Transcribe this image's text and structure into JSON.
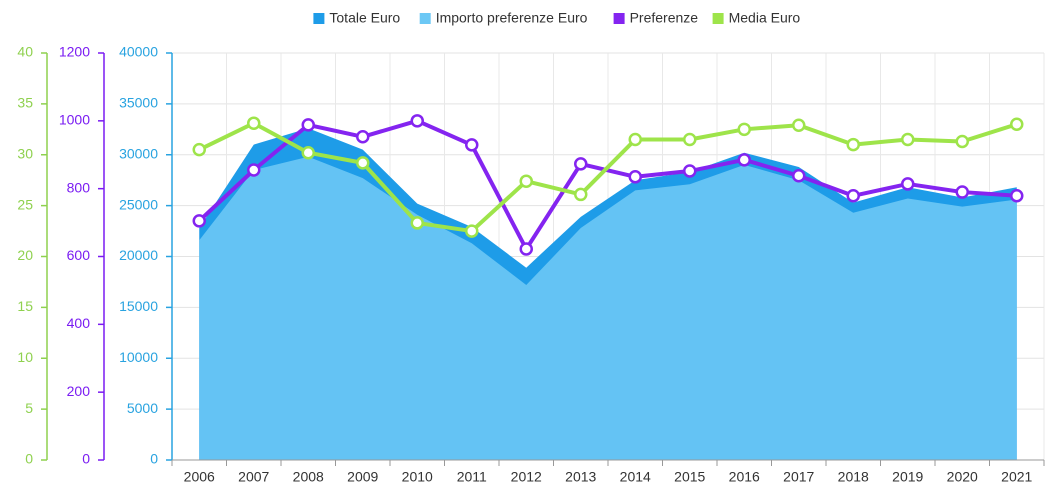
{
  "chart_data": {
    "type": "area-line",
    "categories": [
      "2006",
      "2007",
      "2008",
      "2009",
      "2010",
      "2011",
      "2012",
      "2013",
      "2014",
      "2015",
      "2016",
      "2017",
      "2018",
      "2019",
      "2020",
      "2021"
    ],
    "series": [
      {
        "name": "Totale Euro",
        "color": "#1e9ce8",
        "kind": "area",
        "axis": "y",
        "values": [
          22800,
          31000,
          32600,
          30500,
          25200,
          22900,
          18900,
          23900,
          27500,
          28300,
          30200,
          28800,
          25300,
          26800,
          25800,
          26800
        ]
      },
      {
        "name": "Importo preferenze Euro",
        "color": "#6cc8f5",
        "kind": "area",
        "axis": "y",
        "values": [
          21600,
          28500,
          29800,
          27700,
          24100,
          21300,
          17200,
          22800,
          26500,
          27100,
          29000,
          27500,
          24300,
          25700,
          24900,
          25600
        ]
      },
      {
        "name": "Preferenze",
        "color": "#8424f0",
        "kind": "line",
        "axis": "y2",
        "values": [
          705,
          855,
          988,
          953,
          1000,
          929,
          622,
          873,
          835,
          852,
          885,
          838,
          779,
          814,
          790,
          779
        ]
      },
      {
        "name": "Media Euro",
        "color": "#9ee44a",
        "kind": "line",
        "axis": "y3",
        "values": [
          30.5,
          33.1,
          30.2,
          29.2,
          23.3,
          22.5,
          27.4,
          26.1,
          31.5,
          31.5,
          32.5,
          32.9,
          31.0,
          31.5,
          31.3,
          33.0
        ]
      }
    ],
    "ylim": [
      0,
      40000
    ],
    "yticks": [
      0,
      5000,
      10000,
      15000,
      20000,
      25000,
      30000,
      35000,
      40000
    ],
    "ycolor": "#29a3e0",
    "y2lim": [
      0,
      1200
    ],
    "y2ticks": [
      0,
      200,
      400,
      600,
      800,
      1000,
      1200
    ],
    "y2color": "#7a1cf2",
    "y3lim": [
      0,
      40
    ],
    "y3ticks": [
      0,
      5,
      10,
      15,
      20,
      25,
      30,
      35,
      40
    ],
    "y3color": "#8fd14f",
    "grid": true,
    "legend": "top"
  }
}
